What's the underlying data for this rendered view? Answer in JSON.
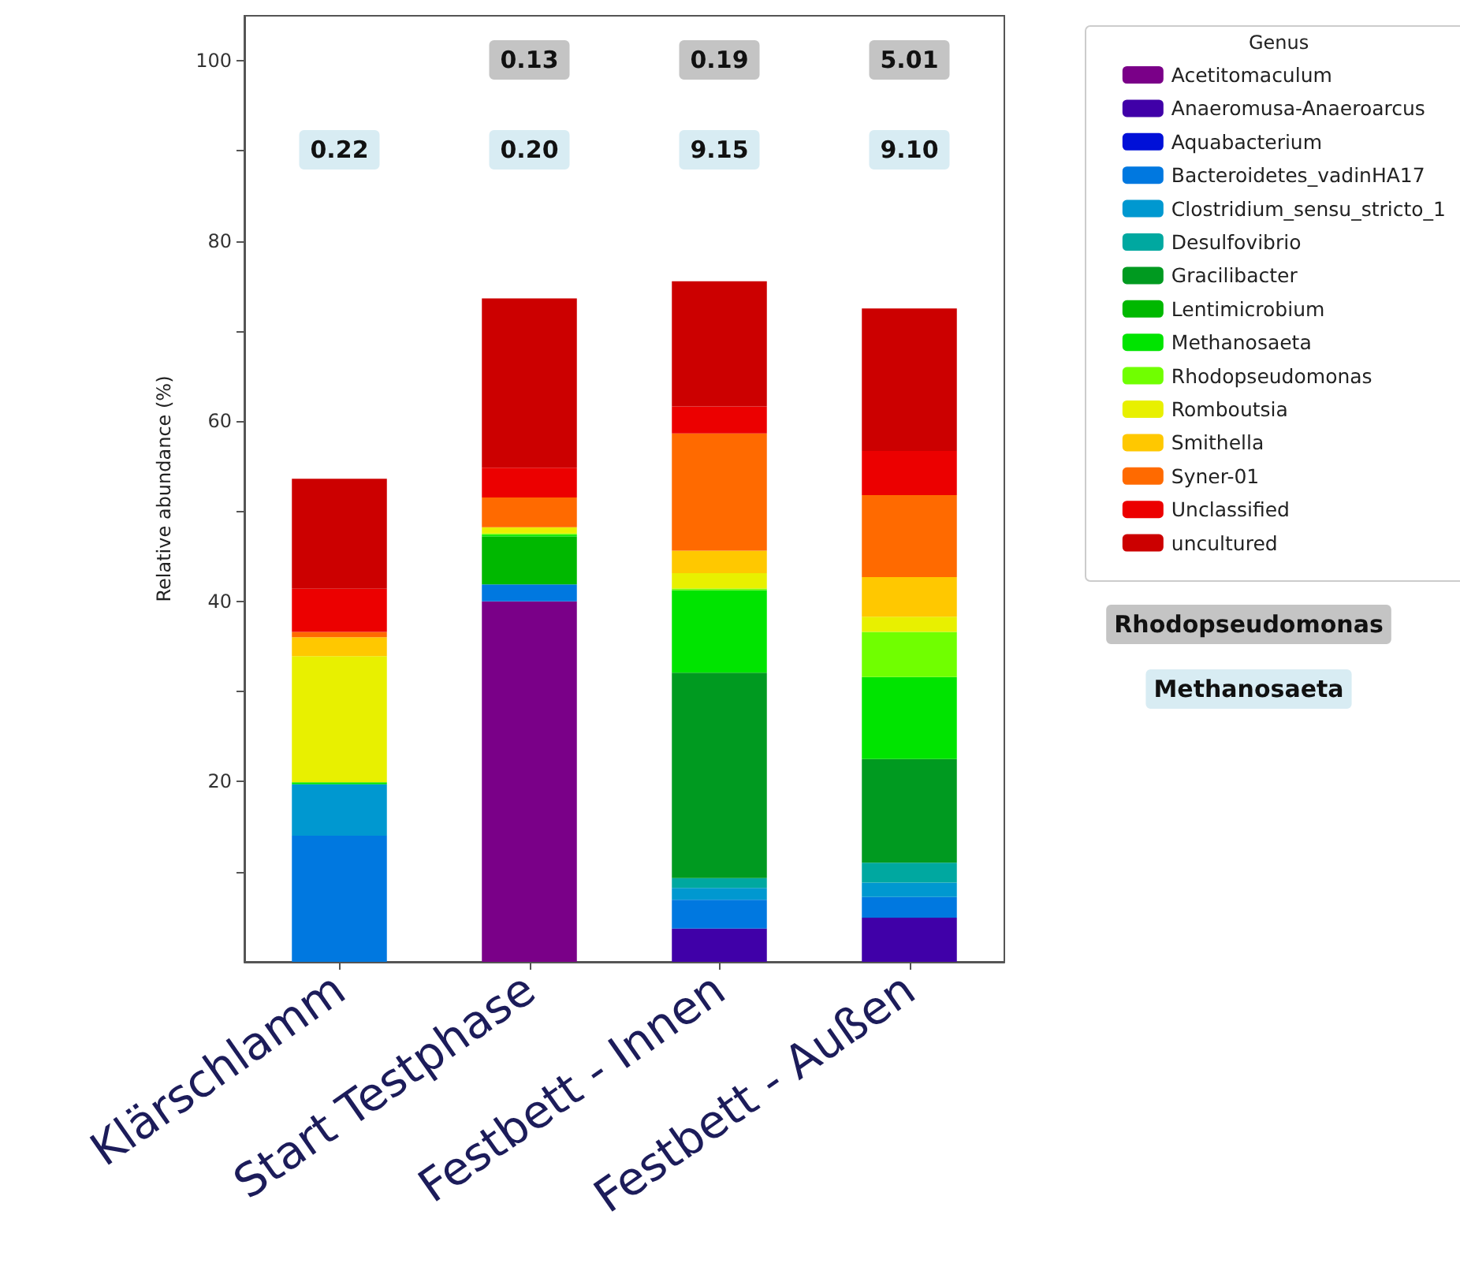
{
  "chart_data": {
    "type": "bar",
    "stacked": true,
    "ylabel": "Relative abundance (%)",
    "legend_title": "Genus",
    "legend": "top right",
    "grid": false,
    "categories": [
      "Klärschlamm",
      "Start Testphase",
      "Festbett - Innen",
      "Festbett - Außen"
    ],
    "ylim": [
      0,
      105
    ],
    "yticks": [
      {
        "value": 10,
        "label": null
      },
      20,
      {
        "value": 30,
        "label": null
      },
      40,
      {
        "value": 50,
        "label": null
      },
      60,
      {
        "value": 70,
        "label": null
      },
      80,
      {
        "value": 90,
        "label": null
      },
      100
    ],
    "series": [
      {
        "name": "Acetitomaculum",
        "color": "#7a0088",
        "values": [
          0,
          40.0,
          0,
          0
        ]
      },
      {
        "name": "Anaeromusa-Anaeroarcus",
        "color": "#4000a8",
        "values": [
          0,
          0,
          3.7,
          4.9
        ]
      },
      {
        "name": "Aquabacterium",
        "color": "#0010d8",
        "values": [
          0,
          0,
          0,
          0
        ]
      },
      {
        "name": "Bacteroidetes_vadinHA17",
        "color": "#0078e0",
        "values": [
          14.0,
          1.9,
          3.2,
          2.3
        ]
      },
      {
        "name": "Clostridium_sensu_stricto_1",
        "color": "#0098d0",
        "values": [
          5.7,
          0,
          1.3,
          1.6
        ]
      },
      {
        "name": "Desulfovibrio",
        "color": "#00a8a0",
        "values": [
          0,
          0,
          1.1,
          2.2
        ]
      },
      {
        "name": "Gracilibacter",
        "color": "#009a20",
        "values": [
          0,
          0,
          22.8,
          11.5
        ]
      },
      {
        "name": "Lentimicrobium",
        "color": "#00b800",
        "values": [
          0,
          5.3,
          0,
          0
        ]
      },
      {
        "name": "Methanosaeta",
        "color": "#00e400",
        "values": [
          0.22,
          0.2,
          9.15,
          9.1
        ]
      },
      {
        "name": "Rhodopseudomonas",
        "color": "#70ff00",
        "values": [
          0,
          0.13,
          0.19,
          5.01
        ]
      },
      {
        "name": "Romboutsia",
        "color": "#e8f000",
        "values": [
          14.0,
          0.7,
          1.7,
          1.7
        ]
      },
      {
        "name": "Smithella",
        "color": "#ffc800",
        "values": [
          2.1,
          0,
          2.5,
          4.4
        ]
      },
      {
        "name": "Syner-01",
        "color": "#ff6a00",
        "values": [
          0.6,
          3.3,
          13.0,
          9.1
        ]
      },
      {
        "name": "Unclassified",
        "color": "#ec0000",
        "values": [
          4.8,
          3.3,
          3.0,
          4.9
        ]
      },
      {
        "name": "uncultured",
        "color": "#cc0000",
        "values": [
          12.2,
          18.8,
          13.9,
          15.8
        ]
      }
    ],
    "annotations": [
      "Rhodopseudomonas",
      "Methanosaeta",
      "0.13",
      "0.19",
      "5.01",
      "0.22",
      "0.20",
      "9.15",
      "9.10"
    ]
  }
}
